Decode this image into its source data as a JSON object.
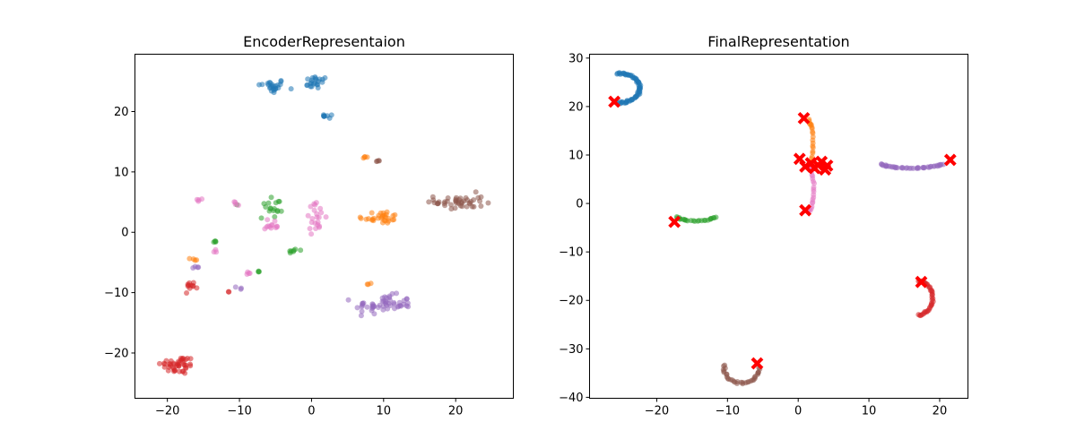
{
  "chart_data": [
    {
      "type": "scatter",
      "title": "EncoderRepresentaion",
      "xlabel": "",
      "ylabel": "",
      "xlim": [
        -24.5,
        28
      ],
      "ylim": [
        -27.5,
        29.5
      ],
      "xticks": [
        -20,
        -10,
        0,
        10,
        20
      ],
      "yticks": [
        -20,
        -10,
        0,
        10,
        20
      ],
      "grid": false,
      "clusters": [
        {
          "color": "#1f77b4",
          "center": [
            -5.5,
            24.2
          ],
          "spread": [
            1.6,
            1.0
          ],
          "n": 24
        },
        {
          "color": "#1f77b4",
          "center": [
            0.6,
            24.8
          ],
          "spread": [
            1.4,
            0.9
          ],
          "n": 22
        },
        {
          "color": "#1f77b4",
          "center": [
            2.4,
            19.2
          ],
          "spread": [
            0.9,
            0.3
          ],
          "n": 8
        },
        {
          "color": "#ff7f0e",
          "center": [
            9.5,
            2.5
          ],
          "spread": [
            2.4,
            0.9
          ],
          "n": 30
        },
        {
          "color": "#ff7f0e",
          "center": [
            -16.0,
            -4.5
          ],
          "spread": [
            0.6,
            0.2
          ],
          "n": 4
        },
        {
          "color": "#ff7f0e",
          "center": [
            7.3,
            12.4
          ],
          "spread": [
            0.5,
            0.2
          ],
          "n": 4
        },
        {
          "color": "#ff7f0e",
          "center": [
            7.8,
            -8.5
          ],
          "spread": [
            0.4,
            0.3
          ],
          "n": 3
        },
        {
          "color": "#2ca02c",
          "center": [
            -5.5,
            4.0
          ],
          "spread": [
            2.0,
            2.0
          ],
          "n": 18
        },
        {
          "color": "#2ca02c",
          "center": [
            -2.5,
            -3.0
          ],
          "spread": [
            0.7,
            0.4
          ],
          "n": 7
        },
        {
          "color": "#2ca02c",
          "center": [
            -13.3,
            -1.6
          ],
          "spread": [
            0.3,
            0.3
          ],
          "n": 4
        },
        {
          "color": "#2ca02c",
          "center": [
            -7.5,
            -6.5
          ],
          "spread": [
            0.3,
            0.2
          ],
          "n": 3
        },
        {
          "color": "#d62728",
          "center": [
            -18.5,
            -22.0
          ],
          "spread": [
            2.0,
            1.3
          ],
          "n": 45
        },
        {
          "color": "#d62728",
          "center": [
            -16.6,
            -8.8
          ],
          "spread": [
            0.8,
            0.5
          ],
          "n": 11
        },
        {
          "color": "#d62728",
          "center": [
            -11.5,
            -9.8
          ],
          "spread": [
            0.3,
            0.2
          ],
          "n": 2
        },
        {
          "color": "#9467bd",
          "center": [
            10.0,
            -12.0
          ],
          "spread": [
            3.3,
            1.3
          ],
          "n": 55
        },
        {
          "color": "#9467bd",
          "center": [
            -16.0,
            -5.8
          ],
          "spread": [
            0.3,
            0.2
          ],
          "n": 4
        },
        {
          "color": "#9467bd",
          "center": [
            -10.0,
            -9.2
          ],
          "spread": [
            0.5,
            0.2
          ],
          "n": 3
        },
        {
          "color": "#8c564b",
          "center": [
            20.5,
            5.0
          ],
          "spread": [
            2.8,
            1.2
          ],
          "n": 45
        },
        {
          "color": "#8c564b",
          "center": [
            9.3,
            11.8
          ],
          "spread": [
            0.4,
            0.2
          ],
          "n": 4
        },
        {
          "color": "#e377c2",
          "center": [
            0.5,
            2.5
          ],
          "spread": [
            1.2,
            2.0
          ],
          "n": 22
        },
        {
          "color": "#e377c2",
          "center": [
            -5.5,
            1.0
          ],
          "spread": [
            1.2,
            1.0
          ],
          "n": 12
        },
        {
          "color": "#e377c2",
          "center": [
            -15.5,
            5.5
          ],
          "spread": [
            0.3,
            0.3
          ],
          "n": 4
        },
        {
          "color": "#e377c2",
          "center": [
            -8.5,
            -6.8
          ],
          "spread": [
            0.4,
            0.2
          ],
          "n": 4
        },
        {
          "color": "#e377c2",
          "center": [
            -10.5,
            4.8
          ],
          "spread": [
            0.4,
            0.4
          ],
          "n": 4
        },
        {
          "color": "#e377c2",
          "center": [
            -13.3,
            -3.0
          ],
          "spread": [
            0.3,
            0.3
          ],
          "n": 3
        }
      ]
    },
    {
      "type": "scatter",
      "title": "FinalRepresentation",
      "xlabel": "",
      "ylabel": "",
      "xlim": [
        -29.5,
        24
      ],
      "ylim": [
        -40.2,
        30.8
      ],
      "xticks": [
        -20,
        -10,
        0,
        10,
        20
      ],
      "yticks": [
        -40,
        -30,
        -20,
        -10,
        0,
        10,
        20,
        30
      ],
      "grid": false,
      "arcs": [
        {
          "color": "#1f77b4",
          "center": [
            -25.2,
            23.8
          ],
          "radius": [
            2.8,
            3.0
          ],
          "from_deg": -100,
          "to_deg": 100,
          "n": 70
        },
        {
          "color": "#ff7f0e",
          "center": [
            1.5,
            12.5
          ],
          "radius": [
            0.6,
            4.5
          ],
          "from_deg": -90,
          "to_deg": 90,
          "n": 25
        },
        {
          "color": "#2ca02c",
          "center": [
            -14.5,
            -2.4
          ],
          "radius": [
            3.0,
            1.2
          ],
          "from_deg": 200,
          "to_deg": 340,
          "n": 25
        },
        {
          "color": "#d62728",
          "center": [
            17.0,
            -19.5
          ],
          "radius": [
            2.0,
            3.5
          ],
          "from_deg": -90,
          "to_deg": 90,
          "n": 40
        },
        {
          "color": "#9467bd",
          "center": [
            16.0,
            8.5
          ],
          "radius": [
            4.5,
            1.2
          ],
          "from_deg": 200,
          "to_deg": 340,
          "n": 45
        },
        {
          "color": "#8c564b",
          "center": [
            -8.0,
            -34.0
          ],
          "radius": [
            2.5,
            3.0
          ],
          "from_deg": 170,
          "to_deg": 360,
          "n": 35
        },
        {
          "color": "#e377c2",
          "center": [
            1.4,
            3.0
          ],
          "radius": [
            0.8,
            4.5
          ],
          "from_deg": -90,
          "to_deg": 90,
          "n": 25
        }
      ],
      "markers": {
        "color": "#ff0000",
        "symbol": "X",
        "points": [
          [
            -26.0,
            21.0
          ],
          [
            0.8,
            17.6
          ],
          [
            0.2,
            9.2
          ],
          [
            1.0,
            7.6
          ],
          [
            1.8,
            8.3
          ],
          [
            2.3,
            7.3
          ],
          [
            2.8,
            7.9
          ],
          [
            3.3,
            8.6
          ],
          [
            3.8,
            7.0
          ],
          [
            4.1,
            7.8
          ],
          [
            1.0,
            -1.4
          ],
          [
            -17.5,
            -3.8
          ],
          [
            17.4,
            -16.2
          ],
          [
            -5.8,
            -33.0
          ],
          [
            21.5,
            9.0
          ]
        ]
      }
    }
  ]
}
